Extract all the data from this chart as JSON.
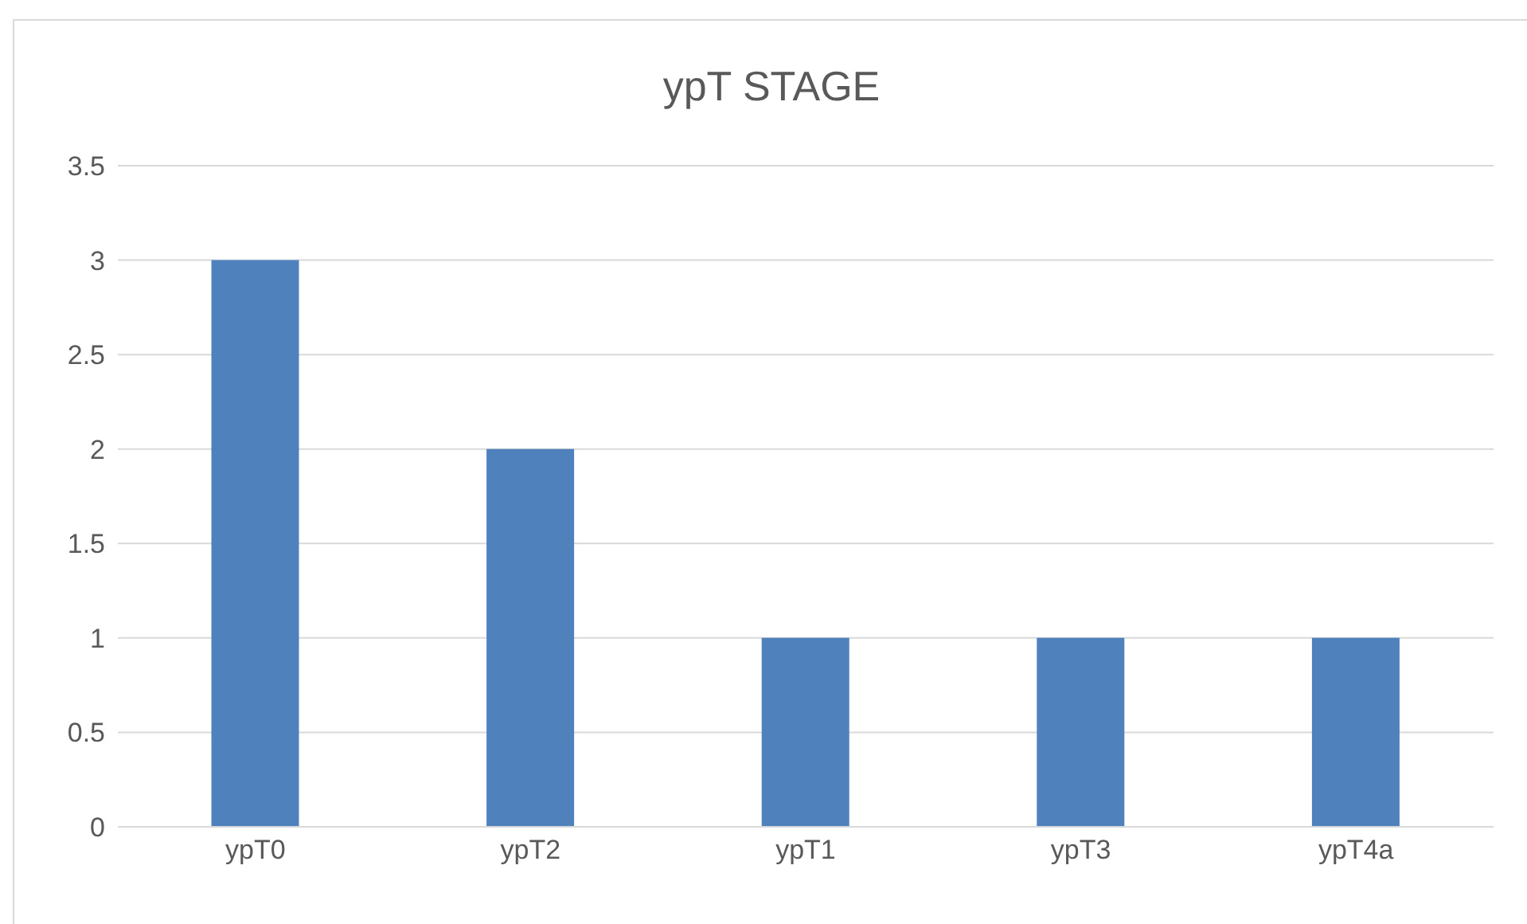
{
  "chart_data": {
    "type": "bar",
    "title": "ypT STAGE",
    "categories": [
      "ypT0",
      "ypT2",
      "ypT1",
      "ypT3",
      "ypT4a"
    ],
    "values": [
      3,
      2,
      1,
      1,
      1
    ],
    "color": "#4f81bd",
    "ylim": [
      0,
      3.5
    ],
    "yticks": [
      0,
      0.5,
      1,
      1.5,
      2,
      2.5,
      3,
      3.5
    ],
    "grid": "y"
  }
}
